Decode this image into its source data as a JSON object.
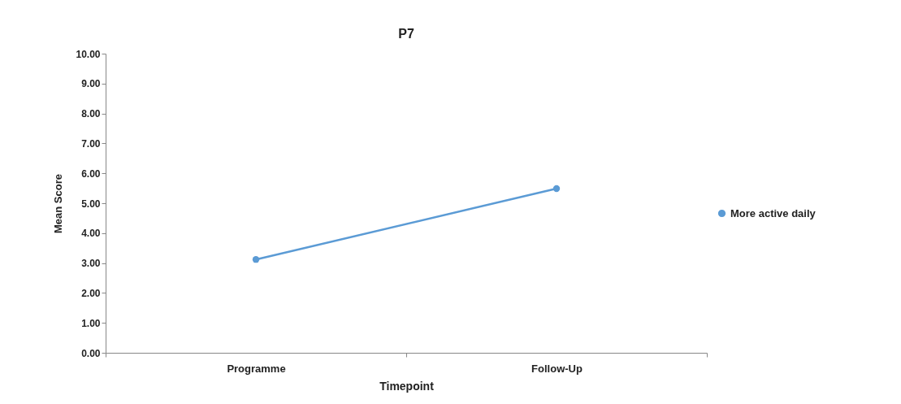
{
  "chart_data": {
    "type": "line",
    "title": "P7",
    "xlabel": "Timepoint",
    "ylabel": "Mean Score",
    "categories": [
      "Programme",
      "Follow-Up"
    ],
    "series": [
      {
        "name": "More active daily",
        "color": "#5b9bd5",
        "values": [
          3.12,
          5.49
        ]
      }
    ],
    "ylim": [
      0,
      10
    ],
    "yticks": [
      {
        "value": 0,
        "label": "0.00"
      },
      {
        "value": 1,
        "label": "1.00"
      },
      {
        "value": 2,
        "label": "2.00"
      },
      {
        "value": 3,
        "label": "3.00"
      },
      {
        "value": 4,
        "label": "4.00"
      },
      {
        "value": 5,
        "label": "5.00"
      },
      {
        "value": 6,
        "label": "6.00"
      },
      {
        "value": 7,
        "label": "7.00"
      },
      {
        "value": 8,
        "label": "8.00"
      },
      {
        "value": 9,
        "label": "9.00"
      },
      {
        "value": 10,
        "label": "10.00"
      }
    ],
    "grid": false,
    "legend": "right",
    "marker": "circle",
    "line_style": "solid"
  }
}
